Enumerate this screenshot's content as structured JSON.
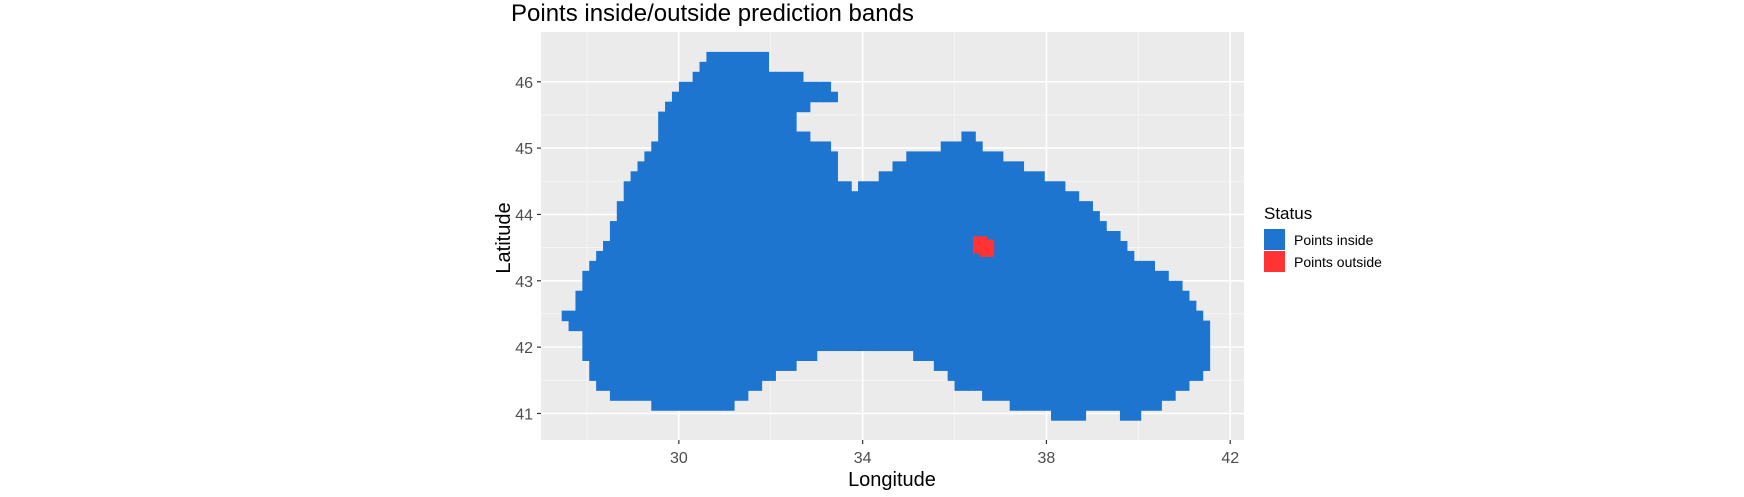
{
  "chart_data": {
    "type": "heatmap",
    "title": "Points inside/outside prediction bands",
    "xlabel": "Longitude",
    "ylabel": "Latitude",
    "xlim": [
      27.0,
      42.3
    ],
    "ylim": [
      40.6,
      46.75
    ],
    "x_ticks": [
      30,
      34,
      38,
      42
    ],
    "y_ticks": [
      41,
      42,
      43,
      44,
      45,
      46
    ],
    "grid": true,
    "panel_background": "#EBEBEB",
    "cell_size_degrees": 0.15,
    "legend": {
      "title": "Status",
      "position": "right",
      "entries": [
        {
          "label": "Points inside",
          "color": "#1E75D0"
        },
        {
          "label": "Points outside",
          "color": "#FF3333"
        }
      ]
    },
    "series": [
      {
        "name": "Points inside",
        "color": "#1E75D0",
        "region_outline": [
          [
            27.45,
            42.45
          ],
          [
            27.85,
            42.2
          ],
          [
            28.0,
            41.7
          ],
          [
            28.35,
            41.3
          ],
          [
            28.9,
            41.2
          ],
          [
            29.6,
            41.1
          ],
          [
            30.5,
            41.0
          ],
          [
            31.1,
            41.1
          ],
          [
            31.7,
            41.4
          ],
          [
            32.4,
            41.7
          ],
          [
            33.2,
            41.95
          ],
          [
            34.2,
            42.0
          ],
          [
            35.0,
            41.9
          ],
          [
            35.7,
            41.7
          ],
          [
            36.1,
            41.4
          ],
          [
            36.7,
            41.25
          ],
          [
            37.3,
            41.1
          ],
          [
            37.8,
            41.0
          ],
          [
            38.4,
            40.95
          ],
          [
            39.2,
            41.0
          ],
          [
            39.9,
            40.95
          ],
          [
            40.7,
            41.2
          ],
          [
            41.3,
            41.5
          ],
          [
            41.6,
            41.7
          ],
          [
            41.6,
            42.3
          ],
          [
            41.3,
            42.6
          ],
          [
            40.9,
            43.0
          ],
          [
            40.4,
            43.2
          ],
          [
            39.9,
            43.4
          ],
          [
            39.5,
            43.7
          ],
          [
            39.0,
            44.1
          ],
          [
            38.4,
            44.4
          ],
          [
            37.8,
            44.6
          ],
          [
            37.2,
            44.8
          ],
          [
            36.6,
            45.0
          ],
          [
            36.4,
            45.25
          ],
          [
            36.2,
            45.2
          ],
          [
            35.7,
            45.0
          ],
          [
            35.2,
            45.0
          ],
          [
            34.7,
            44.8
          ],
          [
            34.2,
            44.5
          ],
          [
            33.8,
            44.4
          ],
          [
            33.4,
            44.5
          ],
          [
            33.5,
            44.7
          ],
          [
            33.3,
            45.0
          ],
          [
            32.5,
            45.3
          ],
          [
            32.5,
            45.5
          ],
          [
            33.0,
            45.65
          ],
          [
            33.6,
            45.8
          ],
          [
            33.0,
            46.0
          ],
          [
            32.5,
            46.1
          ],
          [
            32.0,
            46.2
          ],
          [
            31.9,
            46.4
          ],
          [
            31.4,
            46.5
          ],
          [
            30.75,
            46.5
          ],
          [
            30.4,
            46.2
          ],
          [
            30.0,
            45.9
          ],
          [
            29.6,
            45.5
          ],
          [
            29.5,
            45.1
          ],
          [
            29.2,
            44.8
          ],
          [
            28.8,
            44.4
          ],
          [
            28.6,
            44.0
          ],
          [
            28.4,
            43.6
          ],
          [
            28.2,
            43.3
          ],
          [
            27.9,
            43.1
          ],
          [
            27.8,
            42.7
          ]
        ]
      },
      {
        "name": "Points outside",
        "color": "#FF3333",
        "cells": [
          [
            36.4,
            43.52
          ],
          [
            36.55,
            43.52
          ],
          [
            36.55,
            43.37
          ],
          [
            36.7,
            43.37
          ],
          [
            36.7,
            43.47
          ],
          [
            36.4,
            43.42
          ]
        ]
      }
    ]
  }
}
